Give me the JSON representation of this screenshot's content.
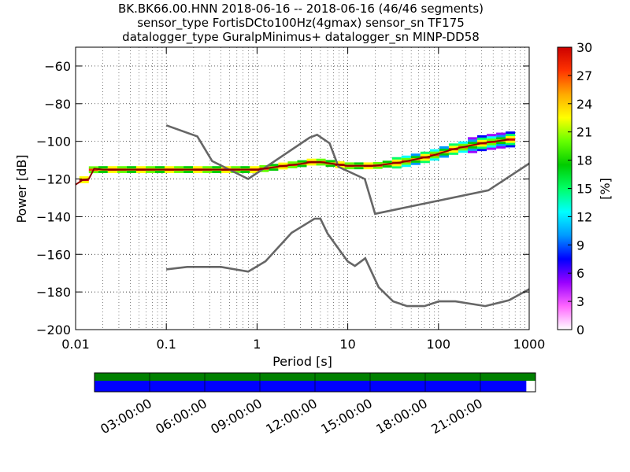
{
  "title_lines": [
    "BK.BK66.00.HNN   2018-06-16 -- 2018-06-16  (46/46 segments)",
    "sensor_type FortisDCto100Hz(4gmax) sensor_sn TF175",
    "datalogger_type GuralpMinimus+ datalogger_sn MINP-DD58"
  ],
  "chart_data": [
    {
      "type": "line",
      "title": "BK.BK66.00.HNN   2018-06-16 -- 2018-06-16  (46/46 segments)",
      "xlabel": "Period [s]",
      "ylabel": "Power [dB]",
      "xscale": "log",
      "xlim": [
        0.01,
        1000
      ],
      "ylim": [
        -200,
        -50
      ],
      "xticks": [
        0.01,
        0.1,
        1,
        10,
        100,
        1000
      ],
      "xtick_labels": [
        "0.01",
        "0.1",
        "1",
        "10",
        "100",
        "1000"
      ],
      "yticks": [
        -200,
        -180,
        -160,
        -140,
        -120,
        -100,
        -80,
        -60
      ],
      "ytick_labels": [
        "−200",
        "−180",
        "−160",
        "−140",
        "−120",
        "−100",
        "−80",
        "−60"
      ],
      "grid": true,
      "series": [
        {
          "role": "noise-model-high",
          "color": "#666666",
          "x": [
            0.1,
            0.22,
            0.32,
            0.8,
            3.8,
            4.6,
            6.3,
            7.9,
            15.4,
            20,
            354.8,
            10000
          ],
          "y": [
            -91.5,
            -97.4,
            -110.5,
            -120,
            -98,
            -96.5,
            -101,
            -113.5,
            -120,
            -138.5,
            -126,
            -80.1
          ]
        },
        {
          "role": "noise-model-low",
          "color": "#666666",
          "x": [
            0.1,
            0.17,
            0.4,
            0.8,
            1.24,
            2.4,
            4.3,
            5,
            6,
            10,
            12,
            15.6,
            21.9,
            31.6,
            45,
            70,
            101,
            154,
            328,
            600,
            10000
          ],
          "y": [
            -168,
            -166.7,
            -166.7,
            -169.2,
            -163.7,
            -148.6,
            -141.1,
            -141.1,
            -149,
            -163.8,
            -166.2,
            -162.1,
            -177.5,
            -185,
            -187.5,
            -187.5,
            -185,
            -185,
            -187.5,
            -184.4,
            -151.9
          ]
        },
        {
          "role": "psd-mode",
          "color": "#8b0000",
          "x": [
            0.01,
            0.012,
            0.014,
            0.016,
            0.02,
            0.05,
            0.1,
            0.3,
            1,
            2,
            3,
            4,
            5,
            7,
            10,
            20,
            40,
            80,
            150,
            300,
            600
          ],
          "y": [
            -123,
            -120.5,
            -120,
            -114.5,
            -115,
            -115,
            -115,
            -115,
            -115,
            -113,
            -112,
            -111,
            -111,
            -112,
            -113,
            -113,
            -111,
            -108,
            -104,
            -101,
            -99
          ]
        }
      ],
      "colorbar": {
        "label": "[%]",
        "min": 0,
        "max": 30,
        "ticks": [
          0,
          3,
          6,
          9,
          12,
          15,
          18,
          21,
          24,
          27,
          30
        ],
        "colormap": [
          "#ffffff",
          "#ff66ff",
          "#9900ff",
          "#0000ff",
          "#0099ff",
          "#00ffff",
          "#00ff66",
          "#00cc00",
          "#66ff00",
          "#ffff00",
          "#ffaa00",
          "#ff3300",
          "#cc0000"
        ]
      }
    },
    {
      "type": "timeline",
      "tick_labels": [
        "03:00:00",
        "06:00:00",
        "09:00:00",
        "12:00:00",
        "15:00:00",
        "18:00:00",
        "21:00:00"
      ],
      "tick_hours": [
        3,
        6,
        9,
        12,
        15,
        18,
        21
      ],
      "span_hours": [
        0,
        24
      ],
      "bars": [
        {
          "role": "data-availability",
          "color": "#008000",
          "start_hour": 0,
          "end_hour": 24
        },
        {
          "role": "psd-coverage",
          "color": "#0000ff",
          "start_hour": 0,
          "end_hour": 23.5
        }
      ]
    }
  ]
}
